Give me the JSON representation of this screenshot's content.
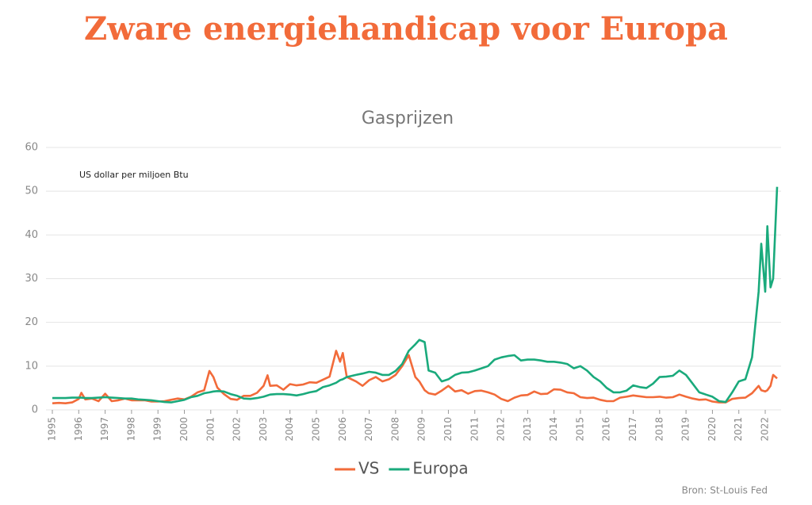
{
  "chart_data": {
    "type": "line",
    "title": "Zware energiehandicap voor Europa",
    "subtitle": "Gasprijzen",
    "y_axis_label": "US dollar per miljoen Btu",
    "source": "Bron: St-Louis Fed",
    "x": [
      1995.0,
      1995.25,
      1995.5,
      1995.75,
      1996.0,
      1996.1,
      1996.25,
      1996.5,
      1996.75,
      1997.0,
      1997.25,
      1997.5,
      1997.75,
      1998.0,
      1998.25,
      1998.5,
      1998.75,
      1999.0,
      1999.25,
      1999.5,
      1999.75,
      2000.0,
      2000.25,
      2000.5,
      2000.75,
      2000.95,
      2001.1,
      2001.25,
      2001.5,
      2001.75,
      2002.0,
      2002.25,
      2002.5,
      2002.75,
      2003.0,
      2003.15,
      2003.25,
      2003.5,
      2003.75,
      2004.0,
      2004.25,
      2004.5,
      2004.75,
      2005.0,
      2005.25,
      2005.5,
      2005.75,
      2005.9,
      2006.0,
      2006.15,
      2006.5,
      2006.75,
      2007.0,
      2007.25,
      2007.5,
      2007.75,
      2008.0,
      2008.25,
      2008.5,
      2008.75,
      2008.9,
      2009.1,
      2009.25,
      2009.5,
      2009.75,
      2010.0,
      2010.25,
      2010.5,
      2010.75,
      2011.0,
      2011.25,
      2011.5,
      2011.75,
      2012.0,
      2012.25,
      2012.5,
      2012.75,
      2013.0,
      2013.25,
      2013.5,
      2013.75,
      2014.0,
      2014.25,
      2014.5,
      2014.75,
      2015.0,
      2015.25,
      2015.5,
      2015.75,
      2016.0,
      2016.25,
      2016.5,
      2016.75,
      2017.0,
      2017.25,
      2017.5,
      2017.75,
      2018.0,
      2018.25,
      2018.5,
      2018.75,
      2019.0,
      2019.25,
      2019.5,
      2019.75,
      2020.0,
      2020.25,
      2020.5,
      2020.75,
      2021.0,
      2021.25,
      2021.5,
      2021.75,
      2021.85,
      2022.0,
      2022.08,
      2022.2,
      2022.3,
      2022.45
    ],
    "series": [
      {
        "name": "VS",
        "color": "#f26b3a",
        "values": [
          1.5,
          1.6,
          1.5,
          1.7,
          2.5,
          3.9,
          2.4,
          2.6,
          2.0,
          3.7,
          2.0,
          2.2,
          2.6,
          2.2,
          2.2,
          2.2,
          1.9,
          1.9,
          2.0,
          2.3,
          2.6,
          2.4,
          3.0,
          4.0,
          4.5,
          8.9,
          7.5,
          5.1,
          3.6,
          2.5,
          2.3,
          3.2,
          3.2,
          3.9,
          5.5,
          7.9,
          5.5,
          5.6,
          4.6,
          5.9,
          5.6,
          5.8,
          6.3,
          6.2,
          6.9,
          7.6,
          13.5,
          11.0,
          13.0,
          7.5,
          6.5,
          5.5,
          6.8,
          7.5,
          6.5,
          7.0,
          8.0,
          10.0,
          12.5,
          7.5,
          6.5,
          4.5,
          3.8,
          3.5,
          4.4,
          5.5,
          4.2,
          4.5,
          3.7,
          4.3,
          4.4,
          4.0,
          3.5,
          2.5,
          2.0,
          2.8,
          3.3,
          3.4,
          4.2,
          3.6,
          3.7,
          4.7,
          4.6,
          4.0,
          3.8,
          2.9,
          2.7,
          2.8,
          2.3,
          2.0,
          2.0,
          2.8,
          3.0,
          3.3,
          3.1,
          2.9,
          2.9,
          3.0,
          2.8,
          2.9,
          3.5,
          3.0,
          2.6,
          2.3,
          2.4,
          1.9,
          1.7,
          1.7,
          2.5,
          2.7,
          2.8,
          3.8,
          5.5,
          4.5,
          4.2,
          4.5,
          5.5,
          8.0,
          7.2
        ]
      },
      {
        "name": "Europa",
        "color": "#1aaa7c",
        "values": [
          2.7,
          2.7,
          2.7,
          2.8,
          2.8,
          2.8,
          2.7,
          2.7,
          2.8,
          2.9,
          2.8,
          2.7,
          2.6,
          2.6,
          2.4,
          2.3,
          2.2,
          2.0,
          1.8,
          1.7,
          2.0,
          2.3,
          2.9,
          3.2,
          3.8,
          4.0,
          4.2,
          4.3,
          4.2,
          3.6,
          3.2,
          2.6,
          2.5,
          2.7,
          3.0,
          3.3,
          3.5,
          3.6,
          3.6,
          3.5,
          3.3,
          3.6,
          4.0,
          4.3,
          5.2,
          5.6,
          6.2,
          6.8,
          7.0,
          7.5,
          8.0,
          8.3,
          8.7,
          8.5,
          8.0,
          8.0,
          8.9,
          10.5,
          13.5,
          15.0,
          16.0,
          15.5,
          9.0,
          8.5,
          6.5,
          7.0,
          8.0,
          8.5,
          8.6,
          9.0,
          9.5,
          10.0,
          11.5,
          12.0,
          12.3,
          12.5,
          11.3,
          11.5,
          11.5,
          11.3,
          11.0,
          11.0,
          10.8,
          10.5,
          9.5,
          10.0,
          9.0,
          7.5,
          6.5,
          5.0,
          4.0,
          4.0,
          4.4,
          5.6,
          5.2,
          5.0,
          6.0,
          7.5,
          7.6,
          7.8,
          9.0,
          8.0,
          6.0,
          4.0,
          3.5,
          3.0,
          2.0,
          1.8,
          4.0,
          6.5,
          7.0,
          12.0,
          27.0,
          38.0,
          27.0,
          42.0,
          28.0,
          30.0,
          51.0
        ]
      }
    ],
    "xlim": [
      1995,
      2022.6
    ],
    "xticks": [
      1995,
      1996,
      1997,
      1998,
      1999,
      2000,
      2001,
      2002,
      2003,
      2004,
      2005,
      2006,
      2007,
      2008,
      2009,
      2010,
      2011,
      2012,
      2013,
      2014,
      2015,
      2016,
      2017,
      2018,
      2019,
      2020,
      2021,
      2022
    ],
    "ylim": [
      0,
      60
    ],
    "yticks": [
      0,
      10,
      20,
      30,
      40,
      50,
      60
    ],
    "grid": true
  }
}
